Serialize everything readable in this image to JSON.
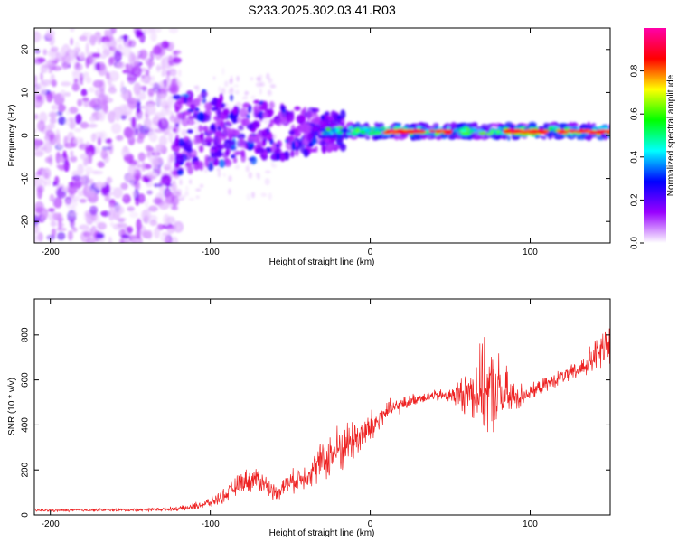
{
  "title": "S233.2025.302.03.41.R03",
  "chart_data": [
    {
      "type": "heatmap",
      "xlabel": "Height of straight line (km)",
      "ylabel": "Frequency (Hz)",
      "xlim": [
        -210,
        150
      ],
      "ylim": [
        -25,
        25
      ],
      "xticks": [
        -200,
        -100,
        0,
        100
      ],
      "yticks": [
        -20,
        -10,
        0,
        10,
        20
      ],
      "xtick_labels": [
        "-200",
        "-100",
        "0",
        "100"
      ],
      "ytick_labels": [
        "-20",
        "-10",
        "0",
        "10",
        "20"
      ],
      "colorbar": {
        "label": "Normalized spectral amplitude",
        "range": [
          0,
          1
        ],
        "ticks": [
          0.0,
          0.2,
          0.4,
          0.6,
          0.8
        ],
        "tick_labels": [
          "0.0",
          "0.2",
          "0.4",
          "0.6",
          "0.8"
        ],
        "colors": [
          "#ffffff",
          "#9900ff",
          "#0000ff",
          "#00ffff",
          "#00ff00",
          "#ffff00",
          "#ff0000",
          "#ff00aa"
        ]
      },
      "description_regions": [
        {
          "x_range": [
            -210,
            -120
          ],
          "freq_range": [
            -25,
            25
          ],
          "level": "scattered low (violet)"
        },
        {
          "x_range": [
            -120,
            -20
          ],
          "freq_range": [
            -8,
            7
          ],
          "level": "moderate (blue/cyan)"
        },
        {
          "x_range": [
            -20,
            150
          ],
          "freq_range": [
            -1,
            3
          ],
          "level": "high band (red/yellow) near 1 Hz"
        }
      ]
    },
    {
      "type": "line",
      "xlabel": "Height of straight line (km)",
      "ylabel": "SNR (10 * v/v)",
      "xlim": [
        -210,
        150
      ],
      "ylim": [
        0,
        960
      ],
      "xticks": [
        -200,
        -100,
        0,
        100
      ],
      "yticks": [
        0,
        200,
        400,
        600,
        800
      ],
      "xtick_labels": [
        "-200",
        "-100",
        "0",
        "100"
      ],
      "ytick_labels": [
        "0",
        "200",
        "400",
        "600",
        "800"
      ],
      "series": [
        {
          "name": "SNR",
          "color": "#ee2222",
          "x": [
            -210,
            -190,
            -170,
            -150,
            -130,
            -115,
            -100,
            -90,
            -80,
            -70,
            -60,
            -50,
            -40,
            -30,
            -20,
            -10,
            0,
            10,
            20,
            30,
            40,
            50,
            60,
            70,
            80,
            90,
            100,
            110,
            120,
            130,
            140,
            150
          ],
          "y": [
            20,
            20,
            22,
            22,
            25,
            30,
            55,
            90,
            150,
            160,
            100,
            145,
            175,
            240,
            290,
            340,
            380,
            460,
            490,
            520,
            530,
            530,
            545,
            560,
            540,
            520,
            545,
            580,
            615,
            640,
            700,
            760
          ],
          "noise_amplitude": [
            8,
            8,
            8,
            8,
            10,
            15,
            30,
            40,
            60,
            70,
            45,
            60,
            70,
            110,
            140,
            120,
            100,
            60,
            40,
            30,
            30,
            40,
            120,
            240,
            220,
            90,
            40,
            40,
            40,
            50,
            90,
            150
          ]
        }
      ]
    }
  ]
}
